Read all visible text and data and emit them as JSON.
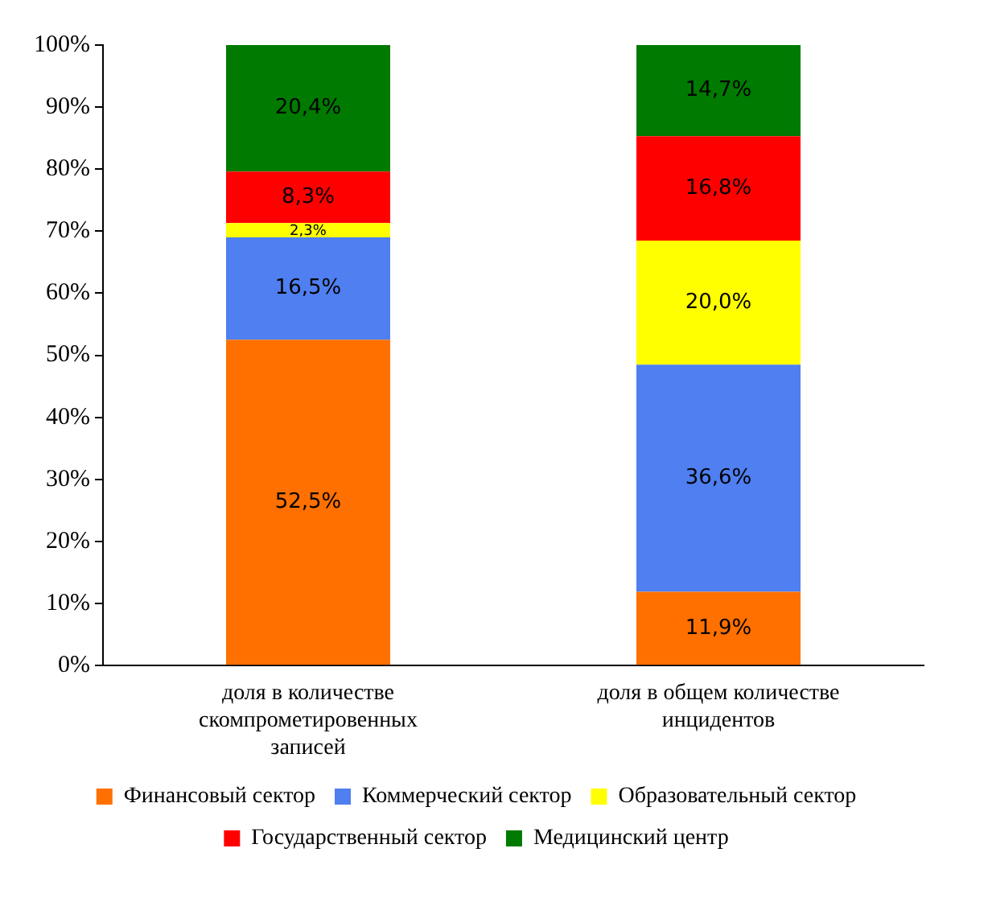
{
  "chart_data": {
    "type": "bar",
    "stacked": true,
    "categories": [
      "доля в количестве скомпрометировенных записей",
      "доля в общем количестве инцидентов"
    ],
    "series": [
      {
        "name": "Финансовый сектор",
        "color": "#ff7000",
        "values": [
          52.5,
          11.9
        ],
        "value_labels": [
          "52,5%",
          "11,9%"
        ]
      },
      {
        "name": "Коммерческий сектор",
        "color": "#4f7ff0",
        "values": [
          16.5,
          36.6
        ],
        "value_labels": [
          "16,5%",
          "36,6%"
        ]
      },
      {
        "name": "Образовательный сектор",
        "color": "#ffff00",
        "values": [
          2.3,
          20.0
        ],
        "value_labels": [
          "2,3%",
          "20,0%"
        ]
      },
      {
        "name": "Государственный сектор",
        "color": "#ff0000",
        "values": [
          8.3,
          16.8
        ],
        "value_labels": [
          "8,3%",
          "16,8%"
        ]
      },
      {
        "name": "Медицинский центр",
        "color": "#007a00",
        "values": [
          20.4,
          14.7
        ],
        "value_labels": [
          "20,4%",
          "14,7%"
        ]
      }
    ],
    "ylim": [
      0,
      100
    ],
    "yticks": [
      {
        "value": 0,
        "label": "0%"
      },
      {
        "value": 10,
        "label": "10%"
      },
      {
        "value": 20,
        "label": "20%"
      },
      {
        "value": 30,
        "label": "30%"
      },
      {
        "value": 40,
        "label": "40%"
      },
      {
        "value": 50,
        "label": "50%"
      },
      {
        "value": 60,
        "label": "60%"
      },
      {
        "value": 70,
        "label": "70%"
      },
      {
        "value": 80,
        "label": "80%"
      },
      {
        "value": 90,
        "label": "90%"
      },
      {
        "value": 100,
        "label": "100%"
      }
    ],
    "grid": false,
    "legend": "bottom"
  }
}
